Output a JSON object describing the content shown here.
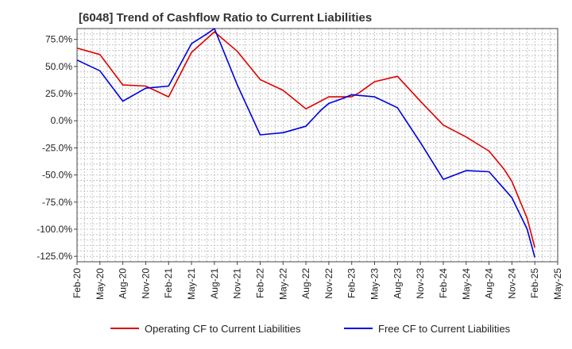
{
  "title": "[6048]  Trend of Cashflow Ratio to Current Liabilities",
  "chart_data": {
    "type": "line",
    "title": "[6048]  Trend of Cashflow Ratio to Current Liabilities",
    "xlabel": "",
    "ylabel": "",
    "x_tick_labels": [
      "Feb-20",
      "May-20",
      "Aug-20",
      "Nov-20",
      "Feb-21",
      "May-21",
      "Aug-21",
      "Nov-21",
      "Feb-22",
      "May-22",
      "Aug-22",
      "Nov-22",
      "Feb-23",
      "May-23",
      "Aug-23",
      "Nov-23",
      "Feb-24",
      "May-24",
      "Aug-24",
      "Nov-24",
      "Feb-25",
      "May-25"
    ],
    "y_tick_labels": [
      "75.0%",
      "50.0%",
      "25.0%",
      "0.0%",
      "-25.0%",
      "-50.0%",
      "-75.0%",
      "-100.0%",
      "-125.0%"
    ],
    "y_ticks": [
      75,
      50,
      25,
      0,
      -25,
      -50,
      -75,
      -100,
      -125
    ],
    "ylim": [
      -130,
      85
    ],
    "grid": true,
    "legend_position": "bottom",
    "series": [
      {
        "name": "Operating CF to Current Liabilities",
        "color": "#dd0000",
        "points": [
          [
            "Feb-20",
            67
          ],
          [
            "May-20",
            61
          ],
          [
            "Aug-20",
            33
          ],
          [
            "Nov-20",
            32
          ],
          [
            "Feb-21",
            22
          ],
          [
            "May-21",
            63
          ],
          [
            "Aug-21",
            82
          ],
          [
            "Nov-21",
            64
          ],
          [
            "Feb-22",
            38
          ],
          [
            "May-22",
            28
          ],
          [
            "Aug-22",
            11
          ],
          [
            "Nov-22",
            22
          ],
          [
            "Feb-23",
            22
          ],
          [
            "Mar-23",
            26
          ],
          [
            "May-23",
            36
          ],
          [
            "Aug-23",
            41
          ],
          [
            "Nov-23",
            18
          ],
          [
            "Feb-24",
            -4
          ],
          [
            "May-24",
            -15
          ],
          [
            "Aug-24",
            -28
          ],
          [
            "Oct-24",
            -45
          ],
          [
            "Nov-24",
            -56
          ],
          [
            "Jan-25",
            -90
          ],
          [
            "Feb-25",
            -117
          ]
        ]
      },
      {
        "name": "Free CF to Current Liabilities",
        "color": "#0000dd",
        "points": [
          [
            "Feb-20",
            56
          ],
          [
            "May-20",
            46
          ],
          [
            "Aug-20",
            18
          ],
          [
            "Nov-20",
            30
          ],
          [
            "Feb-21",
            32
          ],
          [
            "May-21",
            71
          ],
          [
            "Jul-21",
            80
          ],
          [
            "Aug-21",
            85
          ],
          [
            "Nov-21",
            33
          ],
          [
            "Feb-22",
            -13
          ],
          [
            "May-22",
            -11
          ],
          [
            "Aug-22",
            -5
          ],
          [
            "Oct-22",
            10
          ],
          [
            "Nov-22",
            16
          ],
          [
            "Jan-23",
            21
          ],
          [
            "Feb-23",
            24
          ],
          [
            "May-23",
            22
          ],
          [
            "Aug-23",
            12
          ],
          [
            "Nov-23",
            -20
          ],
          [
            "Feb-24",
            -54
          ],
          [
            "May-24",
            -46
          ],
          [
            "Aug-24",
            -47
          ],
          [
            "Nov-24",
            -71
          ],
          [
            "Jan-25",
            -100
          ],
          [
            "Feb-25",
            -126
          ]
        ]
      }
    ]
  }
}
